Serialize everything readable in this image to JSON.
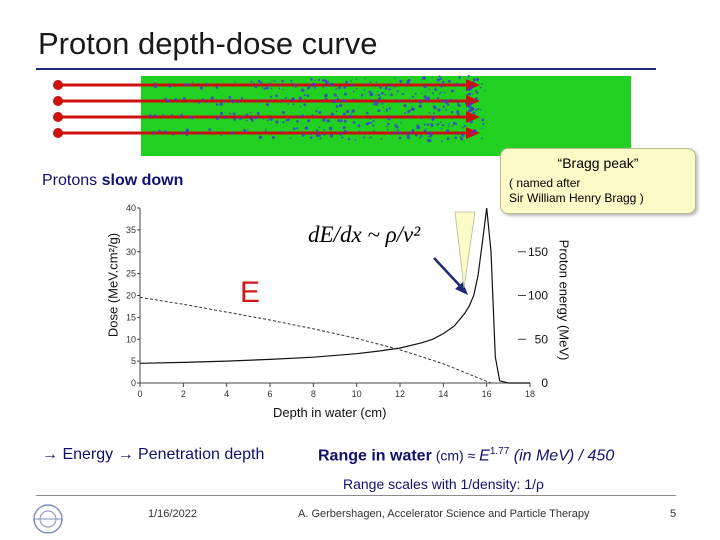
{
  "slide": {
    "title": "Proton depth-dose curve",
    "slow_prefix": "Protons ",
    "slow_bold": "slow down",
    "e_symbol": "E",
    "formula_text": "dE/dx ~ ρ/v²",
    "bottom_energy": "→ Energy → Penetration depth",
    "range_bold": "Range in water",
    "range_unit": " (cm) ≈ ",
    "range_e": "E",
    "range_exp": "1.77",
    "range_tail": " (in MeV) / 450",
    "scaling": "Range scales with 1/density:  1/ρ",
    "date": "1/16/2022",
    "author": "A. Gerbershagen, Accelerator Science and Particle Therapy",
    "page": "5"
  },
  "callout": {
    "title": "“Bragg peak”",
    "line1": "( named after",
    "line2": "Sir William Henry Bragg )"
  },
  "colors": {
    "track_bg": "#22d022",
    "arrow": "#cc1010",
    "scatter": "#3a3ad8",
    "text_blue": "#10106e",
    "bragg_box": "#fbfbc8"
  },
  "icons": {
    "logo": "cern-logo-icon",
    "pointer": "callout-arrow-icon"
  },
  "chart_data": {
    "type": "line",
    "xlabel": "Depth in water (cm)",
    "ylabel": "Dose  (MeV.cm²/g)",
    "y2label": "Proton energy (MeV)",
    "xlim": [
      0,
      18
    ],
    "ylim": [
      0,
      40
    ],
    "y2lim": [
      0,
      200
    ],
    "x_ticks": [
      "0",
      "2",
      "4",
      "6",
      "8",
      "10",
      "12",
      "14",
      "16",
      "18"
    ],
    "y_ticks": [
      "0",
      "5",
      "10",
      "15",
      "20",
      "25",
      "30",
      "35",
      "40"
    ],
    "y2_ticks": [
      "0",
      "50",
      "100",
      "150"
    ],
    "series": [
      {
        "axis": "left",
        "x": [
          0,
          2,
          4,
          6,
          8,
          10,
          11,
          12,
          13,
          13.5,
          14,
          14.5,
          15,
          15.2,
          15.4,
          15.6,
          15.8,
          16.0,
          16.2,
          16.4,
          16.6,
          17,
          18
        ],
        "y": [
          4.5,
          4.7,
          5.0,
          5.4,
          5.9,
          6.7,
          7.3,
          8.0,
          9.2,
          10.0,
          11.3,
          13.0,
          16.0,
          17.6,
          20.0,
          24.5,
          32.0,
          40.0,
          30.0,
          6.0,
          0.5,
          0,
          0
        ]
      },
      {
        "axis": "right",
        "x": [
          0,
          2,
          4,
          6,
          8,
          10,
          12,
          13,
          14,
          15,
          15.5,
          16.0,
          16.2
        ],
        "y": [
          98,
          90,
          81,
          72,
          62,
          51,
          38,
          30,
          22,
          12,
          7,
          2,
          0
        ]
      }
    ]
  }
}
